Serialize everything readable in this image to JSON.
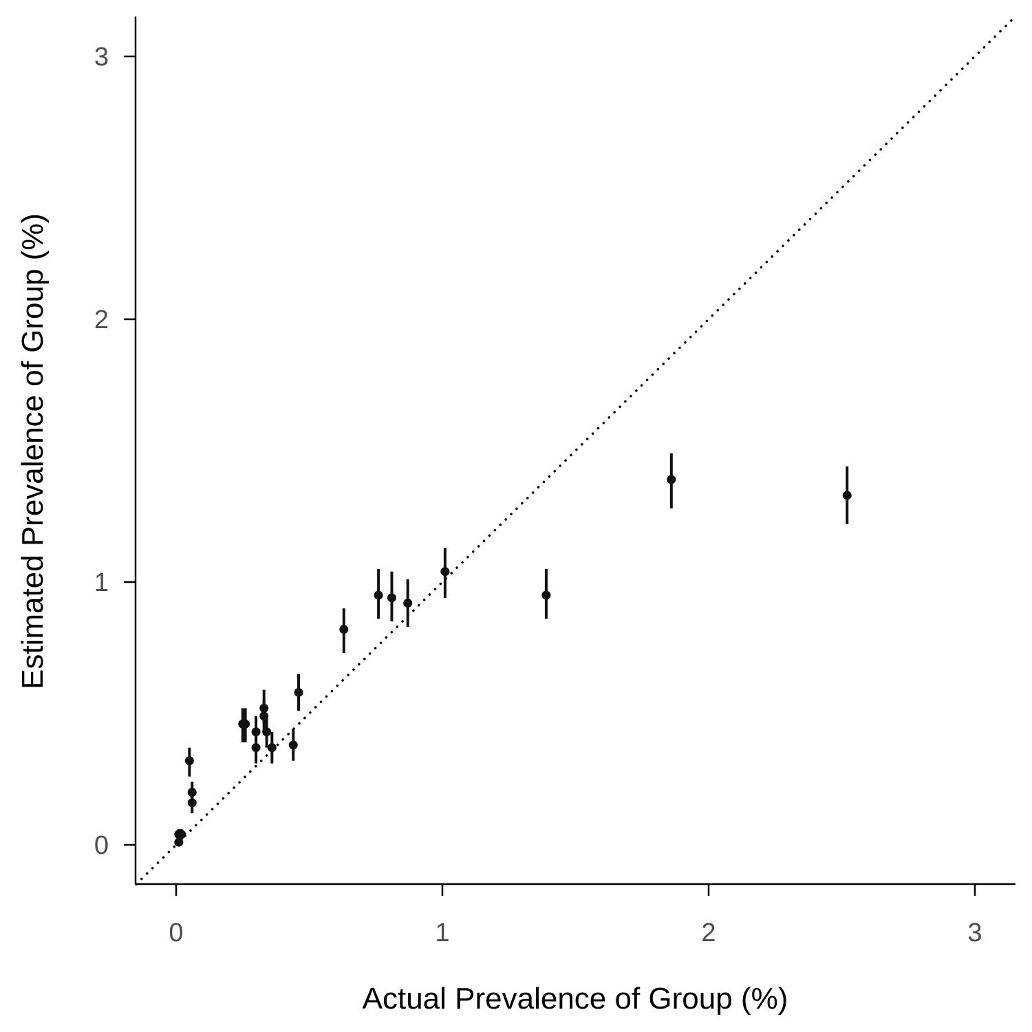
{
  "chart_data": {
    "type": "scatter",
    "xlabel": "Actual Prevalence of Group (%)",
    "ylabel": "Estimated Prevalence of Group (%)",
    "xlim": [
      -0.15,
      3.15
    ],
    "ylim": [
      -0.15,
      3.15
    ],
    "x_ticks": [
      "0",
      "1",
      "2",
      "3"
    ],
    "y_ticks": [
      "0",
      "1",
      "2",
      "3"
    ],
    "reference_line": "y = x (dotted)",
    "grid": false,
    "colors": {
      "points": "#111111",
      "axes": "#000000",
      "tick_labels": "#4d4d4d"
    },
    "points": [
      {
        "x": 0.01,
        "y": 0.04,
        "lo": 0.02,
        "hi": 0.06
      },
      {
        "x": 0.01,
        "y": 0.01,
        "lo": 0.0,
        "hi": 0.02
      },
      {
        "x": 0.02,
        "y": 0.04,
        "lo": 0.02,
        "hi": 0.06
      },
      {
        "x": 0.05,
        "y": 0.32,
        "lo": 0.26,
        "hi": 0.37
      },
      {
        "x": 0.06,
        "y": 0.2,
        "lo": 0.15,
        "hi": 0.24
      },
      {
        "x": 0.06,
        "y": 0.16,
        "lo": 0.12,
        "hi": 0.2
      },
      {
        "x": 0.25,
        "y": 0.46,
        "lo": 0.39,
        "hi": 0.52
      },
      {
        "x": 0.26,
        "y": 0.46,
        "lo": 0.39,
        "hi": 0.52
      },
      {
        "x": 0.3,
        "y": 0.43,
        "lo": 0.37,
        "hi": 0.49
      },
      {
        "x": 0.3,
        "y": 0.37,
        "lo": 0.31,
        "hi": 0.43
      },
      {
        "x": 0.33,
        "y": 0.52,
        "lo": 0.46,
        "hi": 0.59
      },
      {
        "x": 0.33,
        "y": 0.49,
        "lo": 0.43,
        "hi": 0.55
      },
      {
        "x": 0.34,
        "y": 0.43,
        "lo": 0.37,
        "hi": 0.49
      },
      {
        "x": 0.36,
        "y": 0.37,
        "lo": 0.31,
        "hi": 0.43
      },
      {
        "x": 0.44,
        "y": 0.38,
        "lo": 0.32,
        "hi": 0.44
      },
      {
        "x": 0.46,
        "y": 0.58,
        "lo": 0.51,
        "hi": 0.65
      },
      {
        "x": 0.63,
        "y": 0.82,
        "lo": 0.73,
        "hi": 0.9
      },
      {
        "x": 0.76,
        "y": 0.95,
        "lo": 0.86,
        "hi": 1.05
      },
      {
        "x": 0.81,
        "y": 0.94,
        "lo": 0.85,
        "hi": 1.04
      },
      {
        "x": 0.87,
        "y": 0.92,
        "lo": 0.83,
        "hi": 1.01
      },
      {
        "x": 1.01,
        "y": 1.04,
        "lo": 0.94,
        "hi": 1.13
      },
      {
        "x": 1.39,
        "y": 0.95,
        "lo": 0.86,
        "hi": 1.05
      },
      {
        "x": 1.86,
        "y": 1.39,
        "lo": 1.28,
        "hi": 1.49
      },
      {
        "x": 2.52,
        "y": 1.33,
        "lo": 1.22,
        "hi": 1.44
      }
    ]
  }
}
